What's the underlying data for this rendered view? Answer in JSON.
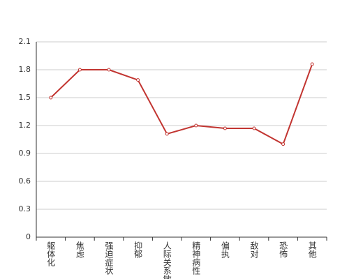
{
  "chart_data": {
    "type": "line",
    "categories": [
      "躯体化",
      "焦虑",
      "强迫症状",
      "抑郁",
      "人际关系敏感",
      "精神病性",
      "偏执",
      "敌对",
      "恐怖",
      "其他"
    ],
    "values": [
      1.5,
      1.8,
      1.8,
      1.69,
      1.11,
      1.2,
      1.17,
      1.17,
      1.0,
      1.86
    ],
    "color": "#c23531",
    "ylim": [
      0,
      2.1
    ],
    "yticks": [
      0,
      0.3,
      0.6,
      0.9,
      1.2,
      1.5,
      1.8,
      2.1
    ],
    "grid": true
  }
}
